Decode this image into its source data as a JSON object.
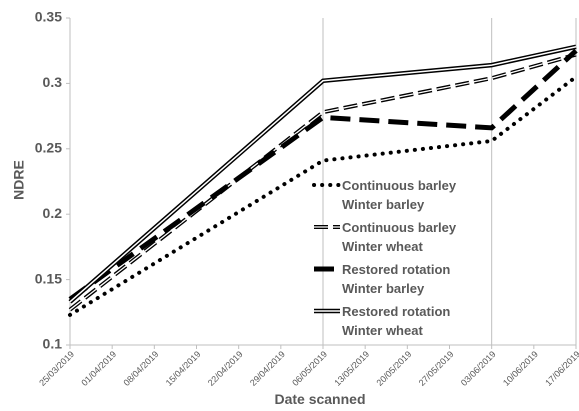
{
  "chart_data": {
    "type": "line",
    "y_label": "NDRE",
    "x_label": "Date scanned",
    "ylim": [
      0.1,
      0.35
    ],
    "yticks": [
      0.1,
      0.15,
      0.2,
      0.25,
      0.3,
      0.35
    ],
    "xlim": [
      "25/03/2019",
      "17/06/2019"
    ],
    "xticks": [
      "25/03/2019",
      "01/04/2019",
      "08/04/2019",
      "15/04/2019",
      "22/04/2019",
      "29/04/2019",
      "06/05/2019",
      "13/05/2019",
      "20/05/2019",
      "27/05/2019",
      "03/06/2019",
      "10/06/2019",
      "17/06/2019"
    ],
    "series": [
      {
        "name": "Continuous barley Winter barley",
        "color": "#000000",
        "style": "dotted",
        "x": [
          "25/03/2019",
          "06/05/2019",
          "03/06/2019",
          "17/06/2019"
        ],
        "values": [
          0.123,
          0.241,
          0.256,
          0.305
        ]
      },
      {
        "name": "Continuous barley Winter wheat",
        "color": "#000000",
        "style": "dashed",
        "x": [
          "25/03/2019",
          "06/05/2019",
          "03/06/2019",
          "17/06/2019"
        ],
        "values": [
          0.127,
          0.278,
          0.304,
          0.322
        ]
      },
      {
        "name": "Restored rotation Winter barley",
        "color": "#000000",
        "style": "long-dashed",
        "x": [
          "25/03/2019",
          "06/05/2019",
          "03/06/2019",
          "17/06/2019"
        ],
        "values": [
          0.135,
          0.274,
          0.266,
          0.325
        ]
      },
      {
        "name": "Restored rotation Winter wheat",
        "color": "#000000",
        "style": "double",
        "x": [
          "25/03/2019",
          "06/05/2019",
          "03/06/2019",
          "17/06/2019"
        ],
        "values": [
          0.133,
          0.302,
          0.314,
          0.328
        ]
      }
    ]
  }
}
